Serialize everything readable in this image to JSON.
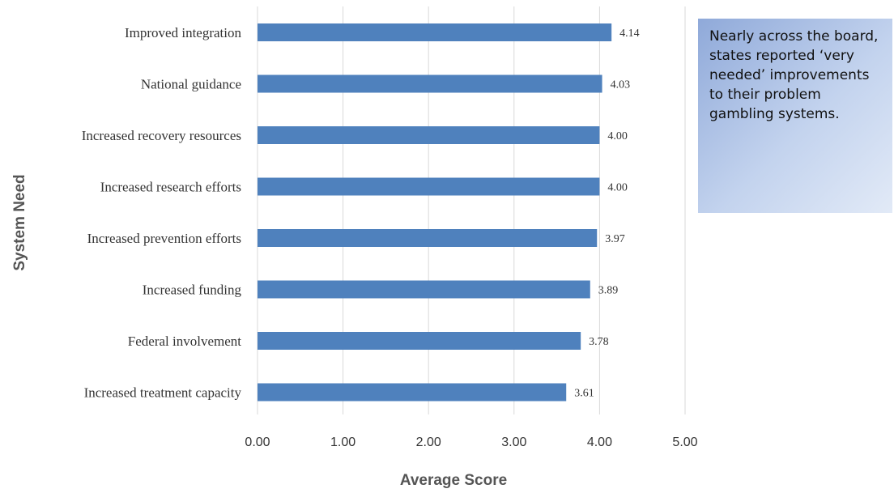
{
  "chart_data": {
    "type": "bar",
    "orientation": "horizontal",
    "categories": [
      "Improved integration",
      "National guidance",
      "Increased recovery resources",
      "Increased research efforts",
      "Increased prevention efforts",
      "Increased funding",
      "Federal involvement",
      "Increased  treatment capacity"
    ],
    "values": [
      4.14,
      4.03,
      4.0,
      4.0,
      3.97,
      3.89,
      3.78,
      3.61
    ],
    "data_labels": [
      "4.14",
      "4.03",
      "4.00",
      "4.00",
      "3.97",
      "3.89",
      "3.78",
      "3.61"
    ],
    "xlabel": "Average Score",
    "ylabel": "System Need",
    "xlim": [
      0,
      5
    ],
    "x_ticks": [
      "0.00",
      "1.00",
      "2.00",
      "3.00",
      "4.00",
      "5.00"
    ],
    "grid": "vertical",
    "legend": "none",
    "bar_color": "#4f81bd"
  },
  "callout": {
    "text": "Nearly across the board, states reported ‘very needed’ improvements to their problem gambling systems."
  },
  "colors": {
    "callout_gradient_start": "#8fa9d9",
    "callout_gradient_end": "#e2eaf7"
  }
}
